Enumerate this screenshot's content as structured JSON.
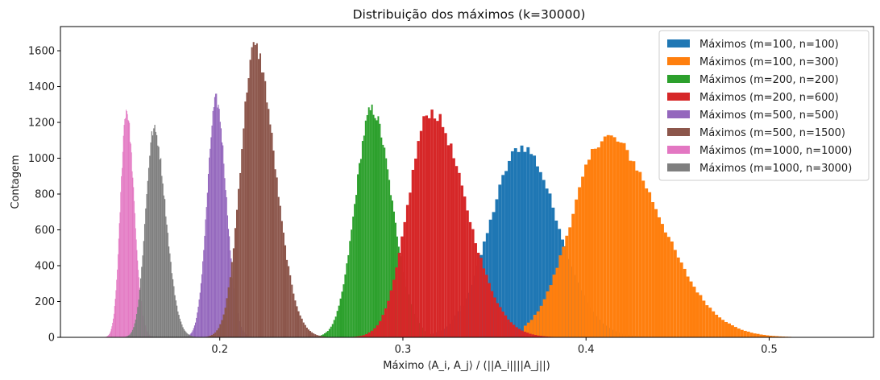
{
  "chart_data": {
    "type": "histogram",
    "title": "Distribuição dos máximos (k=30000)",
    "xlabel": "Máximo ⟨A_i, A_j⟩ / (||A_i||||A_j||)",
    "ylabel": "Contagem",
    "xlim": [
      0.113,
      0.557
    ],
    "ylim": [
      0,
      1735
    ],
    "xticks": [
      0.2,
      0.3,
      0.4,
      0.5
    ],
    "xtick_labels": [
      "0.2",
      "0.3",
      "0.4",
      "0.5"
    ],
    "yticks": [
      0,
      200,
      400,
      600,
      800,
      1000,
      1200,
      1400,
      1600
    ],
    "ytick_labels": [
      "0",
      "200",
      "400",
      "600",
      "800",
      "1000",
      "1200",
      "1400",
      "1600"
    ],
    "grid": false,
    "legend_position": "top-right",
    "series": [
      {
        "name": "Máximos (m=100, n=100)",
        "color": "#1f77b4",
        "range": [
          0.282,
          0.453
        ],
        "mode": 0.365,
        "peak": 1065,
        "sigma_left": 0.0172,
        "sigma_right": 0.0195
      },
      {
        "name": "Máximos (m=100, n=300)",
        "color": "#ff7f0e",
        "range": [
          0.366,
          0.54
        ],
        "mode": 0.411,
        "peak": 1120,
        "sigma_left": 0.0185,
        "sigma_right": 0.029
      },
      {
        "name": "Máximos (m=200, n=200)",
        "color": "#2ca02c",
        "range": [
          0.244,
          0.33
        ],
        "mode": 0.283,
        "peak": 1270,
        "sigma_left": 0.009,
        "sigma_right": 0.011
      },
      {
        "name": "Máximos (m=200, n=600)",
        "color": "#d62728",
        "range": [
          0.263,
          0.412
        ],
        "mode": 0.315,
        "peak": 1260,
        "sigma_left": 0.012,
        "sigma_right": 0.019
      },
      {
        "name": "Máximos (m=500, n=500)",
        "color": "#9467bd",
        "range": [
          0.178,
          0.228
        ],
        "mode": 0.198,
        "peak": 1325,
        "sigma_left": 0.0048,
        "sigma_right": 0.0055
      },
      {
        "name": "Máximos (m=500, n=1500)",
        "color": "#8c564b",
        "range": [
          0.188,
          0.279
        ],
        "mode": 0.219,
        "peak": 1620,
        "sigma_left": 0.0075,
        "sigma_right": 0.011
      },
      {
        "name": "Máximos (m=1000, n=1000)",
        "color": "#e377c2",
        "range": [
          0.135,
          0.172
        ],
        "mode": 0.149,
        "peak": 1270,
        "sigma_left": 0.0032,
        "sigma_right": 0.0042
      },
      {
        "name": "Máximos (m=1000, n=3000)",
        "color": "#7f7f7f",
        "range": [
          0.145,
          0.2
        ],
        "mode": 0.164,
        "peak": 1160,
        "sigma_left": 0.0045,
        "sigma_right": 0.0065
      }
    ]
  }
}
